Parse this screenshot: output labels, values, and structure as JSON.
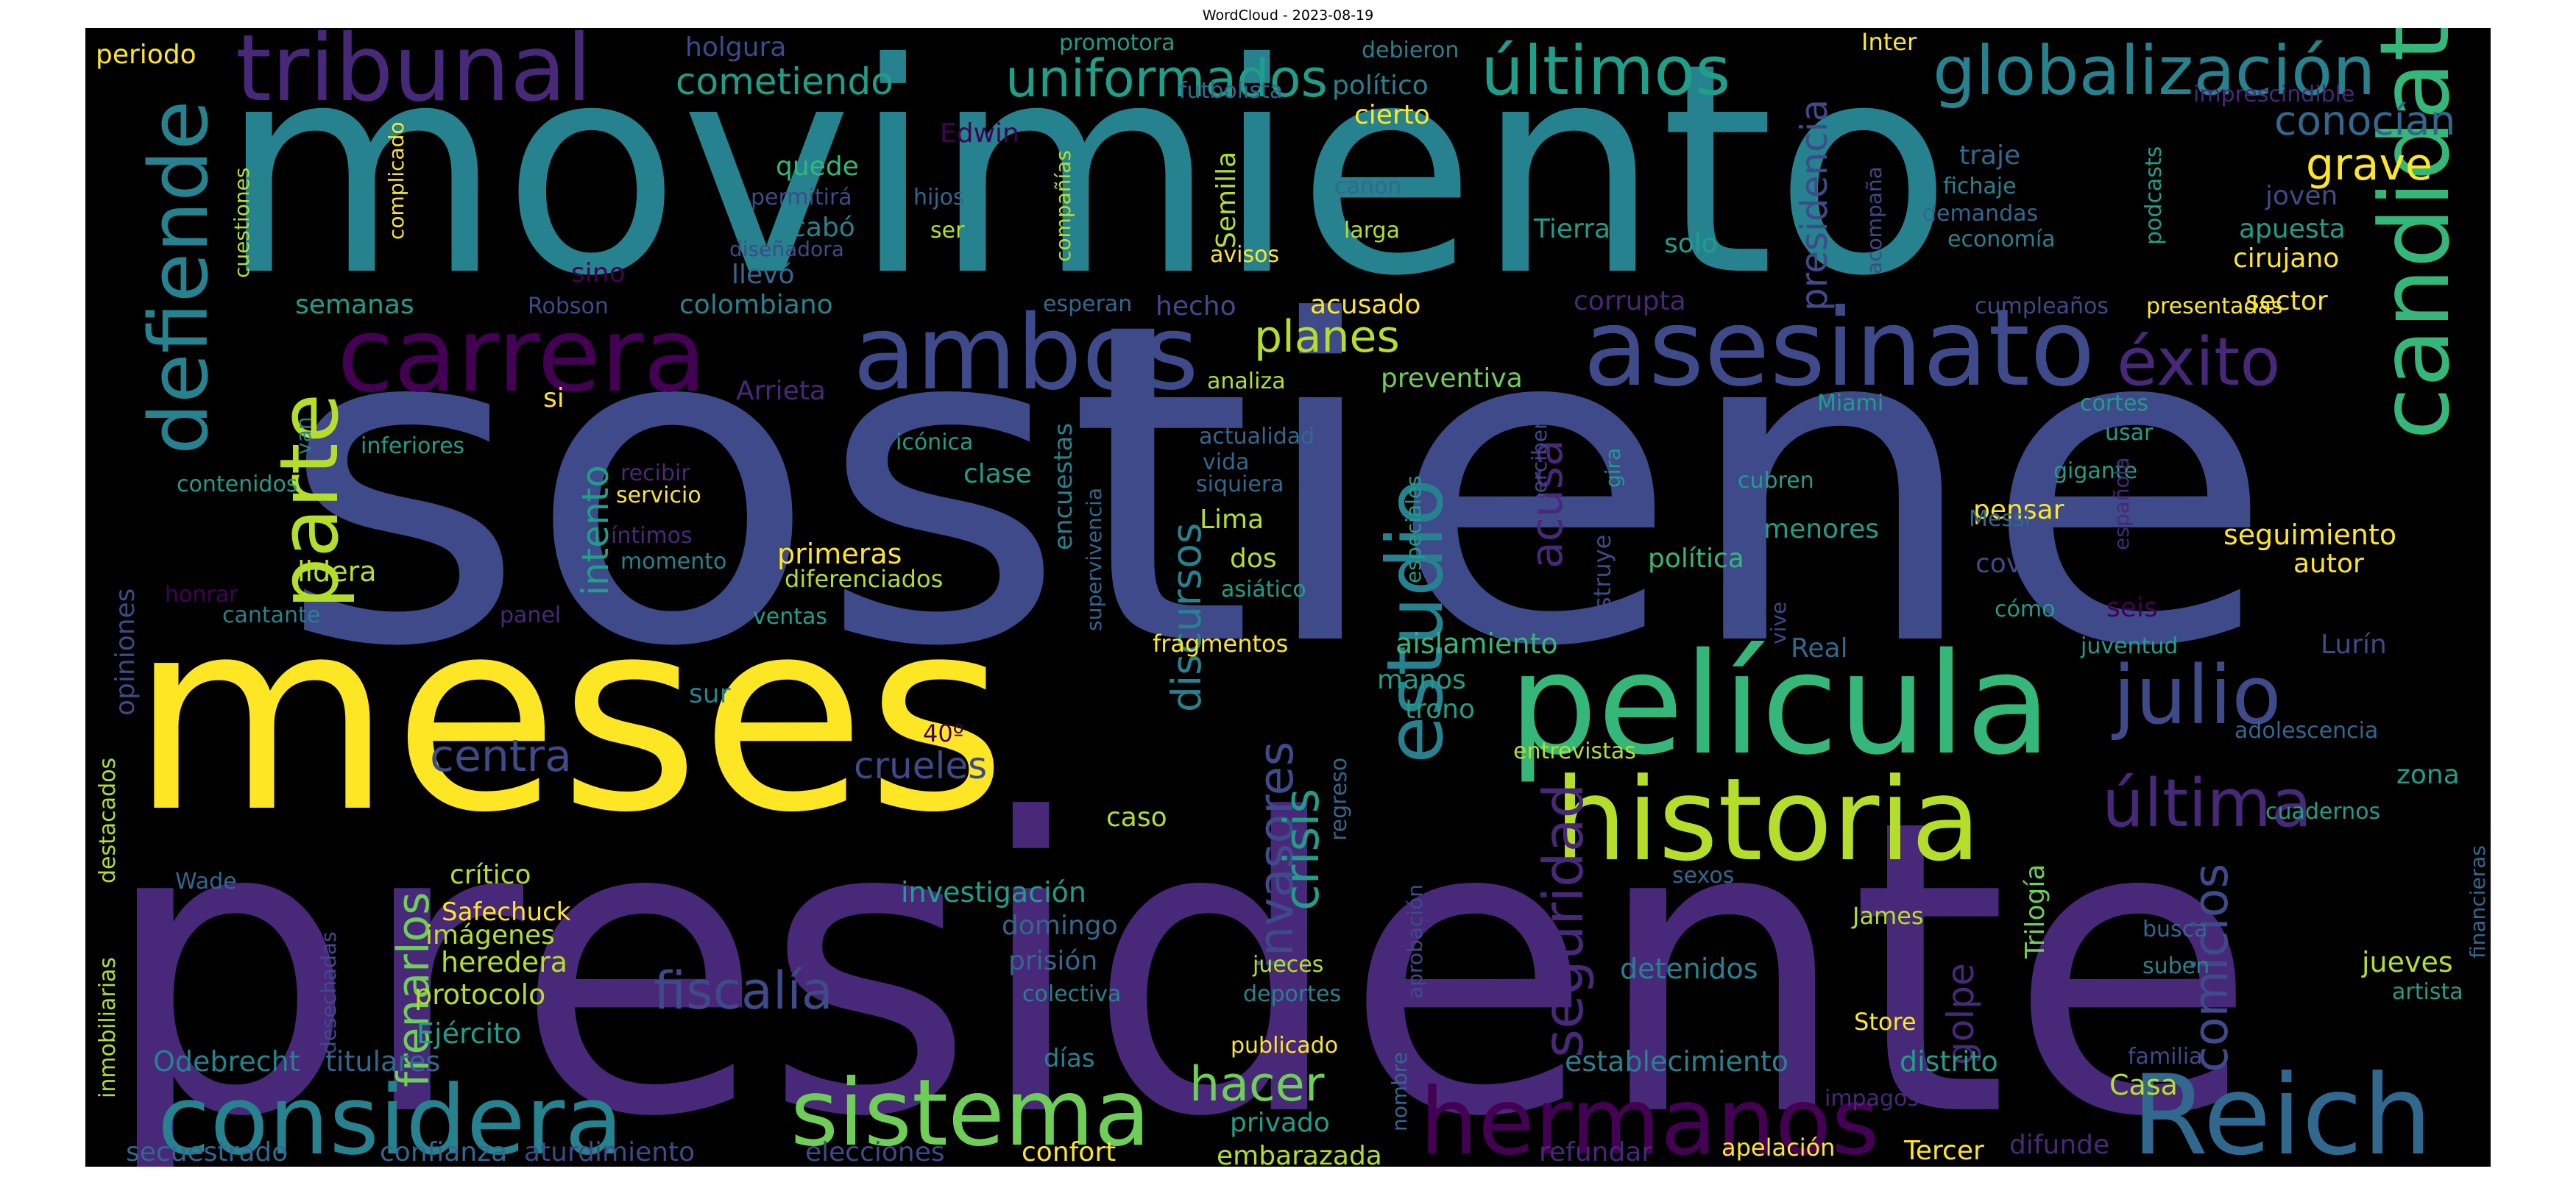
{
  "figure": {
    "title": "WordCloud - 2023-08-19"
  },
  "palette": {
    "c1": "#440154",
    "c2": "#482878",
    "c3": "#3e4a89",
    "c4": "#31688e",
    "c5": "#26828e",
    "c6": "#1f9e89",
    "c7": "#35b779",
    "c8": "#6ece58",
    "c9": "#b5de2b",
    "c10": "#fde725"
  },
  "words": [
    {
      "t": "sostiene",
      "c": "c3"
    },
    {
      "t": "presidente",
      "c": "c2"
    },
    {
      "t": "movimiento",
      "c": "c5"
    },
    {
      "t": "meses",
      "c": "c10"
    },
    {
      "t": "película",
      "c": "c7"
    },
    {
      "t": "historia",
      "c": "c9"
    },
    {
      "t": "candidato",
      "c": "c7"
    },
    {
      "t": "asesinato",
      "c": "c3"
    },
    {
      "t": "considera",
      "c": "c5"
    },
    {
      "t": "sistema",
      "c": "c8"
    },
    {
      "t": "hermanos",
      "c": "c1"
    },
    {
      "t": "Reich",
      "c": "c4"
    },
    {
      "t": "carrera",
      "c": "c1"
    },
    {
      "t": "ambos",
      "c": "c3"
    },
    {
      "t": "tribunal",
      "c": "c2"
    },
    {
      "t": "globalización",
      "c": "c5"
    },
    {
      "t": "últimos",
      "c": "c6"
    },
    {
      "t": "defiende",
      "c": "c5"
    },
    {
      "t": "parte",
      "c": "c9"
    },
    {
      "t": "estudio",
      "c": "c5"
    },
    {
      "t": "julio",
      "c": "c3"
    },
    {
      "t": "última",
      "c": "c2"
    },
    {
      "t": "éxito",
      "c": "c2"
    },
    {
      "t": "uniformados",
      "c": "c6"
    },
    {
      "t": "centra",
      "c": "c3"
    },
    {
      "t": "fiscalía",
      "c": "c3"
    },
    {
      "t": "seguridad",
      "c": "c2"
    },
    {
      "t": "comicios",
      "c": "c3"
    },
    {
      "t": "invasores",
      "c": "c3"
    },
    {
      "t": "frenarlos",
      "c": "c8"
    },
    {
      "t": "crisis",
      "c": "c6"
    },
    {
      "t": "hacer",
      "c": "c8"
    },
    {
      "t": "acusa",
      "c": "c2"
    },
    {
      "t": "presidencia",
      "c": "c3"
    },
    {
      "t": "discursos",
      "c": "c5"
    },
    {
      "t": "intento",
      "c": "c6"
    },
    {
      "t": "planes",
      "c": "c9"
    },
    {
      "t": "grave",
      "c": "c10"
    },
    {
      "t": "conocían",
      "c": "c4"
    },
    {
      "t": "cometiendo",
      "c": "c6"
    },
    {
      "t": "golpe",
      "c": "c2"
    },
    {
      "t": "crueles",
      "c": "c3"
    },
    {
      "t": "investigación",
      "c": "c6"
    },
    {
      "t": "establecimiento",
      "c": "c5"
    },
    {
      "t": "distrito",
      "c": "c6"
    },
    {
      "t": "detenidos",
      "c": "c5"
    },
    {
      "t": "aislamiento",
      "c": "c7"
    },
    {
      "t": "seguimiento",
      "c": "c10"
    },
    {
      "t": "protocolo",
      "c": "c9"
    },
    {
      "t": "heredera",
      "c": "c9"
    },
    {
      "t": "primeras",
      "c": "c10"
    },
    {
      "t": "lidera",
      "c": "c9"
    },
    {
      "t": "jueves",
      "c": "c9"
    },
    {
      "t": "Casa",
      "c": "c9"
    },
    {
      "t": "Ejército",
      "c": "c6"
    },
    {
      "t": "Odebrecht",
      "c": "c5"
    },
    {
      "t": "titulares",
      "c": "c4"
    },
    {
      "t": "secuestrado",
      "c": "c4"
    },
    {
      "t": "confianza",
      "c": "c4"
    },
    {
      "t": "aturdimiento",
      "c": "c3"
    },
    {
      "t": "elecciones",
      "c": "c3"
    },
    {
      "t": "confort",
      "c": "c10"
    },
    {
      "t": "embarazada",
      "c": "c9"
    },
    {
      "t": "refundar",
      "c": "c2"
    },
    {
      "t": "apelación",
      "c": "c10"
    },
    {
      "t": "Tercer",
      "c": "c10"
    },
    {
      "t": "difunde",
      "c": "c2"
    },
    {
      "t": "privado",
      "c": "c6"
    },
    {
      "t": "prisión",
      "c": "c4"
    },
    {
      "t": "domingo",
      "c": "c4"
    },
    {
      "t": "caso",
      "c": "c9"
    },
    {
      "t": "trono",
      "c": "c6"
    },
    {
      "t": "manos",
      "c": "c6"
    },
    {
      "t": "Real",
      "c": "c4"
    },
    {
      "t": "sur",
      "c": "c5"
    },
    {
      "t": "política",
      "c": "c7"
    },
    {
      "t": "menores",
      "c": "c6"
    },
    {
      "t": "pensar",
      "c": "c10"
    },
    {
      "t": "covid",
      "c": "c3"
    },
    {
      "t": "autor",
      "c": "c10"
    },
    {
      "t": "clase",
      "c": "c6"
    },
    {
      "t": "Lima",
      "c": "c9"
    },
    {
      "t": "dos",
      "c": "c9"
    },
    {
      "t": "acusado",
      "c": "c10"
    },
    {
      "t": "preventiva",
      "c": "c8"
    },
    {
      "t": "hecho",
      "c": "c3"
    },
    {
      "t": "corrupta",
      "c": "c2"
    },
    {
      "t": "sector",
      "c": "c10"
    },
    {
      "t": "cirujano",
      "c": "c10"
    },
    {
      "t": "apuesta",
      "c": "c6"
    },
    {
      "t": "joven",
      "c": "c3"
    },
    {
      "t": "traje",
      "c": "c4"
    },
    {
      "t": "solo",
      "c": "c6"
    },
    {
      "t": "Tierra",
      "c": "c6"
    },
    {
      "t": "semanas",
      "c": "c6"
    },
    {
      "t": "colombiano",
      "c": "c5"
    },
    {
      "t": "llevó",
      "c": "c4"
    },
    {
      "t": "acabó",
      "c": "c5"
    },
    {
      "t": "quede",
      "c": "c7"
    },
    {
      "t": "cierto",
      "c": "c10"
    },
    {
      "t": "político",
      "c": "c5"
    },
    {
      "t": "holgura",
      "c": "c3"
    },
    {
      "t": "periodo",
      "c": "c10"
    },
    {
      "t": "Edwin",
      "c": "c1"
    },
    {
      "t": "Semilla",
      "c": "c9"
    },
    {
      "t": "Inter",
      "c": "c10"
    },
    {
      "t": "promotora",
      "c": "c6"
    },
    {
      "t": "debieron",
      "c": "c5"
    },
    {
      "t": "futbolista",
      "c": "c4"
    },
    {
      "t": "imprescindible",
      "c": "c2"
    },
    {
      "t": "fichaje",
      "c": "c5"
    },
    {
      "t": "demandas",
      "c": "c4"
    },
    {
      "t": "economía",
      "c": "c5"
    },
    {
      "t": "podcasts",
      "c": "c6"
    },
    {
      "t": "acompaña",
      "c": "c3"
    },
    {
      "t": "cumpleaños",
      "c": "c3"
    },
    {
      "t": "presentadas",
      "c": "c10"
    },
    {
      "t": "canon",
      "c": "c4"
    },
    {
      "t": "larga",
      "c": "c9"
    },
    {
      "t": "avisos",
      "c": "c10"
    },
    {
      "t": "compañías",
      "c": "c9"
    },
    {
      "t": "hijos",
      "c": "c4"
    },
    {
      "t": "permitirá",
      "c": "c3"
    },
    {
      "t": "ser",
      "c": "c9"
    },
    {
      "t": "diseñadora",
      "c": "c3"
    },
    {
      "t": "complicado",
      "c": "c10"
    },
    {
      "t": "cuestiones",
      "c": "c9"
    },
    {
      "t": "sino",
      "c": "c1"
    },
    {
      "t": "Robson",
      "c": "c3"
    },
    {
      "t": "esperan",
      "c": "c4"
    },
    {
      "t": "Arrieta",
      "c": "c2"
    },
    {
      "t": "si",
      "c": "c10"
    },
    {
      "t": "analiza",
      "c": "c9"
    },
    {
      "t": "Miami",
      "c": "c6"
    },
    {
      "t": "cortes",
      "c": "c6"
    },
    {
      "t": "usar",
      "c": "c6"
    },
    {
      "t": "gigante",
      "c": "c6"
    },
    {
      "t": "Messi",
      "c": "c4"
    },
    {
      "t": "española",
      "c": "c2"
    },
    {
      "t": "seis",
      "c": "c1"
    },
    {
      "t": "cómo",
      "c": "c6"
    },
    {
      "t": "Lurín",
      "c": "c3"
    },
    {
      "t": "juventud",
      "c": "c6"
    },
    {
      "t": "adolescencia",
      "c": "c4"
    },
    {
      "t": "zona",
      "c": "c6"
    },
    {
      "t": "cuadernos",
      "c": "c6"
    },
    {
      "t": "financieras",
      "c": "c4"
    },
    {
      "t": "artista",
      "c": "c6"
    },
    {
      "t": "suben",
      "c": "c5"
    },
    {
      "t": "busca",
      "c": "c4"
    },
    {
      "t": "familia",
      "c": "c3"
    },
    {
      "t": "impagos",
      "c": "c2"
    },
    {
      "t": "Store",
      "c": "c10"
    },
    {
      "t": "Trilogía",
      "c": "c8"
    },
    {
      "t": "James",
      "c": "c9"
    },
    {
      "t": "sexos",
      "c": "c4"
    },
    {
      "t": "entrevistas",
      "c": "c9"
    },
    {
      "t": "vive",
      "c": "c3"
    },
    {
      "t": "cubren",
      "c": "c6"
    },
    {
      "t": "destruye",
      "c": "c3"
    },
    {
      "t": "gira",
      "c": "c6"
    },
    {
      "t": "perciben",
      "c": "c3"
    },
    {
      "t": "especiales",
      "c": "c6"
    },
    {
      "t": "actualidad",
      "c": "c4"
    },
    {
      "t": "vida",
      "c": "c4"
    },
    {
      "t": "siquiera",
      "c": "c4"
    },
    {
      "t": "asiático",
      "c": "c6"
    },
    {
      "t": "icónica",
      "c": "c6"
    },
    {
      "t": "encuestas",
      "c": "c5"
    },
    {
      "t": "supervivencia",
      "c": "c4"
    },
    {
      "t": "diferenciados",
      "c": "c9"
    },
    {
      "t": "ventas",
      "c": "c6"
    },
    {
      "t": "fragmentos",
      "c": "c10"
    },
    {
      "t": "recibir",
      "c": "c2"
    },
    {
      "t": "servicio",
      "c": "c10"
    },
    {
      "t": "íntimos",
      "c": "c2"
    },
    {
      "t": "momento",
      "c": "c5"
    },
    {
      "t": "panel",
      "c": "c2"
    },
    {
      "t": "inferiores",
      "c": "c6"
    },
    {
      "t": "contenidos",
      "c": "c6"
    },
    {
      "t": "van",
      "c": "c5"
    },
    {
      "t": "cantante",
      "c": "c5"
    },
    {
      "t": "honrar",
      "c": "c1"
    },
    {
      "t": "opiniones",
      "c": "c3"
    },
    {
      "t": "destacados",
      "c": "c9"
    },
    {
      "t": "inmobiliarias",
      "c": "c9"
    },
    {
      "t": "Wade",
      "c": "c4"
    },
    {
      "t": "desechadas",
      "c": "c3"
    },
    {
      "t": "crítico",
      "c": "c9"
    },
    {
      "t": "Safechuck",
      "c": "c10"
    },
    {
      "t": "imágenes",
      "c": "c9"
    },
    {
      "t": "40º",
      "c": "c1"
    },
    {
      "t": "colectiva",
      "c": "c5"
    },
    {
      "t": "deportes",
      "c": "c5"
    },
    {
      "t": "jueces",
      "c": "c9"
    },
    {
      "t": "días",
      "c": "c5"
    },
    {
      "t": "publicado",
      "c": "c10"
    },
    {
      "t": "regreso",
      "c": "c4"
    },
    {
      "t": "aprobación",
      "c": "c3"
    },
    {
      "t": "nombre",
      "c": "c4"
    }
  ]
}
